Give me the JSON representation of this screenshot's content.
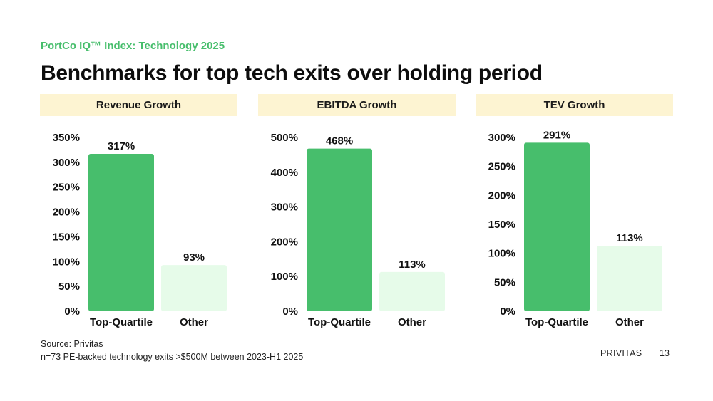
{
  "header": {
    "kicker": "PortCo IQ™ Index: Technology 2025",
    "title": "Benchmarks for top tech exits over holding period"
  },
  "colors": {
    "top_quartile": "#47BE6C",
    "other": "#E6FBE9",
    "header_bg": "#FDF4D2",
    "kicker": "#47BE6C"
  },
  "chart_data": [
    {
      "type": "bar",
      "title": "Revenue Growth",
      "categories": [
        "Top-Quartile",
        "Other"
      ],
      "values": [
        317,
        93
      ],
      "value_labels": [
        "317%",
        "93%"
      ],
      "ylim": [
        0,
        350
      ],
      "yticks": [
        0,
        50,
        100,
        150,
        200,
        250,
        300,
        350
      ],
      "ytick_labels": [
        "0%",
        "50%",
        "100%",
        "150%",
        "200%",
        "250%",
        "300%",
        "350%"
      ],
      "grid": false
    },
    {
      "type": "bar",
      "title": "EBITDA Growth",
      "categories": [
        "Top-Quartile",
        "Other"
      ],
      "values": [
        468,
        113
      ],
      "value_labels": [
        "468%",
        "113%"
      ],
      "ylim": [
        0,
        500
      ],
      "yticks": [
        0,
        100,
        200,
        300,
        400,
        500
      ],
      "ytick_labels": [
        "0%",
        "100%",
        "200%",
        "300%",
        "400%",
        "500%"
      ],
      "grid": false
    },
    {
      "type": "bar",
      "title": "TEV Growth",
      "categories": [
        "Top-Quartile",
        "Other"
      ],
      "values": [
        291,
        113
      ],
      "value_labels": [
        "291%",
        "113%"
      ],
      "ylim": [
        0,
        300
      ],
      "yticks": [
        0,
        50,
        100,
        150,
        200,
        250,
        300
      ],
      "ytick_labels": [
        "0%",
        "50%",
        "100%",
        "150%",
        "200%",
        "250%",
        "300%"
      ],
      "grid": false
    }
  ],
  "footer": {
    "source": "Source: Privitas",
    "note": "n=73 PE-backed technology exits >$500M between 2023-H1 2025",
    "brand": "PRIVITAS",
    "page": "13"
  }
}
